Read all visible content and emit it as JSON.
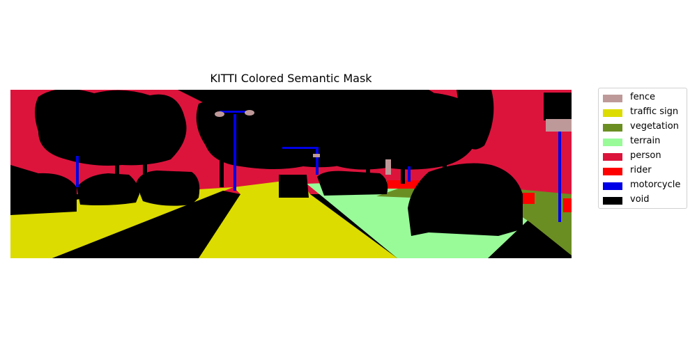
{
  "title": "KITTI Colored Semantic Mask",
  "legend": [
    {
      "label": "fence",
      "color": "#be9999"
    },
    {
      "label": "traffic sign",
      "color": "#dcdc00"
    },
    {
      "label": "vegetation",
      "color": "#6b8e23"
    },
    {
      "label": "terrain",
      "color": "#98fb98"
    },
    {
      "label": "person",
      "color": "#dc143c"
    },
    {
      "label": "rider",
      "color": "#ff0000"
    },
    {
      "label": "motorcycle",
      "color": "#0000e6"
    },
    {
      "label": "void",
      "color": "#000000"
    }
  ]
}
